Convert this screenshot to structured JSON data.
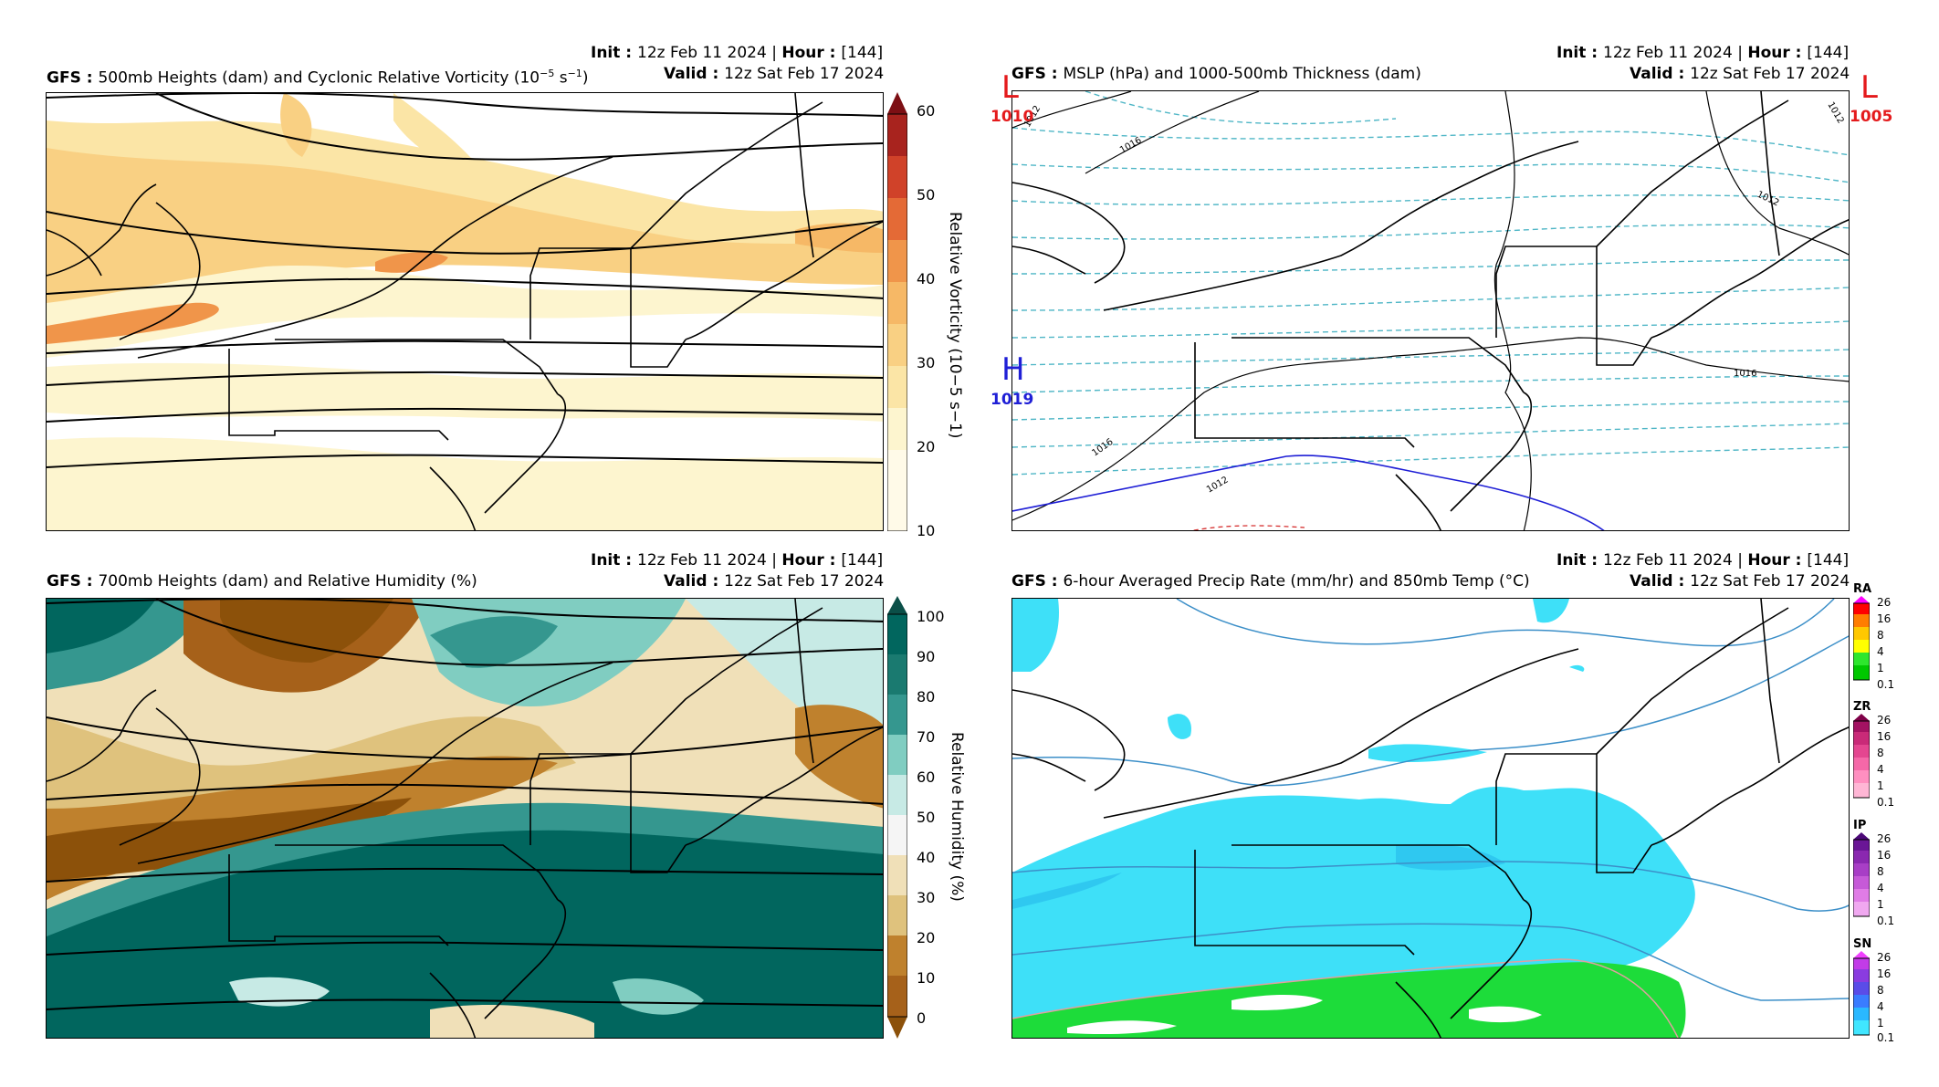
{
  "panels": [
    {
      "id": "vort",
      "model": "GFS",
      "title_suffix": "500mb Heights (dam) and Cyclonic Relative Vorticity (10",
      "title_exp": "−5",
      "title_tail": " s",
      "title_exp2": "−1",
      "title_close": ")",
      "init_label": "Init",
      "init_value": "12z Feb 11 2024",
      "hour_label": "Hour",
      "hour_value": "[144]",
      "valid_label": "Valid",
      "valid_value": "12z Sat Feb 17 2024",
      "colorbar_label": "Relative Vorticity (10−5 s−1)",
      "colorbar_ticks": [
        "60",
        "50",
        "40",
        "30",
        "20",
        "10"
      ],
      "colors": [
        "#fdf5cf",
        "#fbe5a6",
        "#f9d083",
        "#f6b866",
        "#f0954a",
        "#e46a36",
        "#d04229",
        "#a8231e",
        "#7d0f14"
      ]
    },
    {
      "id": "mslp",
      "model": "GFS",
      "title_suffix": "MSLP (hPa) and 1000-500mb Thickness (dam)",
      "init_label": "Init",
      "init_value": "12z Feb 11 2024",
      "hour_label": "Hour",
      "hour_value": "[144]",
      "valid_label": "Valid",
      "valid_value": "12z Sat Feb 17 2024",
      "systems": [
        {
          "letter": "L",
          "value": "1010",
          "color": "#e41a1c"
        },
        {
          "letter": "L",
          "value": "1005",
          "color": "#e41a1c"
        },
        {
          "letter": "H",
          "value": "1019",
          "color": "#1f1fd6"
        }
      ],
      "isobar_labels": [
        "1012",
        "1016",
        "1012",
        "1016",
        "1016",
        "1012",
        "1012"
      ],
      "thickness_color": "#4fb6c6"
    },
    {
      "id": "rh",
      "model": "GFS",
      "title_suffix": "700mb Heights (dam) and Relative Humidity (%)",
      "init_label": "Init",
      "init_value": "12z Feb 11 2024",
      "hour_label": "Hour",
      "hour_value": "[144]",
      "valid_label": "Valid",
      "valid_value": "12z Sat Feb 17 2024",
      "colorbar_label": "Relative Humidity (%)",
      "colorbar_ticks": [
        "100",
        "90",
        "80",
        "70",
        "60",
        "50",
        "40",
        "30",
        "20",
        "10",
        "0"
      ],
      "colors": [
        "#8c510a",
        "#a6611a",
        "#bf812d",
        "#d2a15f",
        "#dfc27d",
        "#f0e0b8",
        "#f5f5f5",
        "#c7eae5",
        "#80cdc1",
        "#35978f",
        "#01665e",
        "#0b4f48"
      ]
    },
    {
      "id": "precip",
      "model": "GFS",
      "title_suffix": "6-hour Averaged Precip Rate (mm/hr) and 850mb Temp (°C)",
      "init_label": "Init",
      "init_value": "12z Feb 11 2024",
      "hour_label": "Hour",
      "hour_value": "[144]",
      "valid_label": "Valid",
      "valid_value": "12z Sat Feb 17 2024",
      "ptypes": [
        {
          "name": "RA",
          "ticks": [
            "26",
            "16",
            "8",
            "4",
            "1",
            "0.1"
          ],
          "colors": [
            "#00c800",
            "#2ee62e",
            "#ffff00",
            "#ffc800",
            "#ff7d00",
            "#ff0000",
            "#ff00ff"
          ]
        },
        {
          "name": "ZR",
          "ticks": [
            "26",
            "16",
            "8",
            "4",
            "1",
            "0.1"
          ],
          "colors": [
            "#ffb6d5",
            "#ff8fc0",
            "#f568a8",
            "#e44690",
            "#c92a78",
            "#a31262",
            "#7f0048"
          ]
        },
        {
          "name": "IP",
          "ticks": [
            "26",
            "16",
            "8",
            "4",
            "1",
            "0.1"
          ],
          "colors": [
            "#f0a8f0",
            "#e07ce6",
            "#c65ad8",
            "#a83ec6",
            "#8a28b0",
            "#6a1696",
            "#4c0878"
          ]
        },
        {
          "name": "SN",
          "ticks": [
            "26",
            "16",
            "8",
            "4",
            "1",
            "0.1"
          ],
          "colors": [
            "#40e6ff",
            "#2ab8ff",
            "#3a7cff",
            "#5a4ce8",
            "#8a3ce0",
            "#c23ce8",
            "#f040ff"
          ]
        }
      ],
      "snow_color": "#3ee0f8",
      "rain_color": "#1ddc3a"
    }
  ]
}
